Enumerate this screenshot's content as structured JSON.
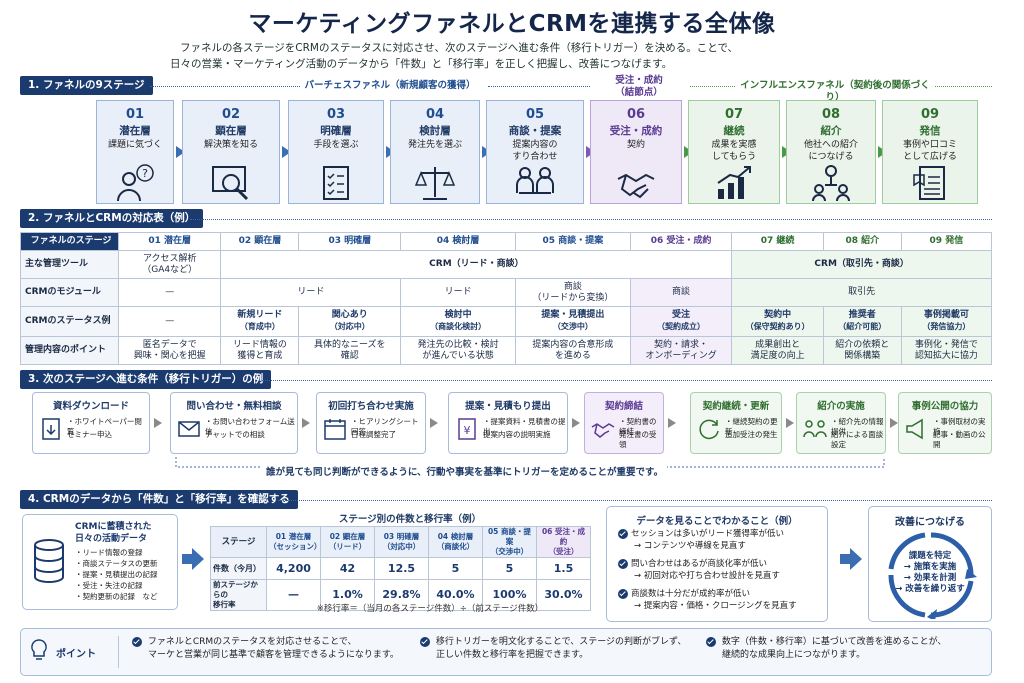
{
  "title": "マーケティングファネルとCRMを連携する全体像",
  "subtitle1": "ファネルの各ステージをCRMのステータスに対応させ、次のステージへ進む条件（移行トリガー）を決める。ことで、",
  "subtitle2": "日々の営業・マーケティング活動のデータから「件数」と「移行率」を正しく把握し、改善につなげます。",
  "sections": [
    "1. ファネルの9ステージ",
    "2. ファネルとCRMの対応表（例）",
    "3. 次のステージへ進む条件（移行トリガー）の例",
    "4. CRMのデータから「件数」と「移行率」を確認する"
  ],
  "groups": {
    "purchase": "パーチェスファネル（新規顧客の獲得）",
    "node1": "受注・成約",
    "node2": "（結節点）",
    "influence": "インフルエンスファネル（契約後の関係づくり）"
  },
  "stages": [
    {
      "num": "01",
      "name": "潜在層",
      "desc1": "課題に気づく",
      "desc2": "",
      "icon": "person-question-icon"
    },
    {
      "num": "02",
      "name": "顕在層",
      "desc1": "解決策を知る",
      "desc2": "",
      "icon": "magnifier-screen-icon"
    },
    {
      "num": "03",
      "name": "明確層",
      "desc1": "手段を選ぶ",
      "desc2": "",
      "icon": "checklist-icon"
    },
    {
      "num": "04",
      "name": "検討層",
      "desc1": "発注先を選ぶ",
      "desc2": "",
      "icon": "scale-icon"
    },
    {
      "num": "05",
      "name": "商談・提案",
      "desc1": "提案内容の",
      "desc2": "すり合わせ",
      "icon": "meeting-icon"
    },
    {
      "num": "06",
      "name": "受注・成約",
      "desc1": "契約",
      "desc2": "",
      "icon": "handshake-icon"
    },
    {
      "num": "07",
      "name": "継続",
      "desc1": "成果を実感",
      "desc2": "してもらう",
      "icon": "growth-chart-icon"
    },
    {
      "num": "08",
      "name": "紹介",
      "desc1": "他社への紹介",
      "desc2": "につなげる",
      "icon": "referral-icon"
    },
    {
      "num": "09",
      "name": "発信",
      "desc1": "事例や口コミ",
      "desc2": "として広げる",
      "icon": "document-icon"
    }
  ],
  "table": {
    "header": [
      "ファネルのステージ",
      "01 潜在層",
      "02 顕在層",
      "03 明確層",
      "04 検討層",
      "05 商談・提案",
      "06 受注・成約",
      "07 継続",
      "08 紹介",
      "09 発信"
    ],
    "tools_label": "主な管理ツール",
    "tools_01a": "アクセス解析",
    "tools_01b": "（GA4など）",
    "tools_crm1": "CRM（リード・商談）",
    "tools_crm2": "CRM（取引先・商談）",
    "module_label": "CRMのモジュール",
    "module_01": "—",
    "module_lead1": "リード",
    "module_lead2": "リード",
    "module_05a": "商談",
    "module_05b": "（リードから変換）",
    "module_06": "商談",
    "module_acc": "取引先",
    "status_label": "CRMのステータス例",
    "status_01": "—",
    "status": [
      [
        "新規リード",
        "（育成中）"
      ],
      [
        "関心あり",
        "（対応中）"
      ],
      [
        "検討中",
        "（商談化検討）"
      ],
      [
        "提案・見積提出",
        "（交渉中）"
      ],
      [
        "受注",
        "（契約成立）"
      ],
      [
        "契約中",
        "（保守契約あり）"
      ],
      [
        "推奨者",
        "（紹介可能）"
      ],
      [
        "事例掲載可",
        "（発信協力）"
      ]
    ],
    "point_label": "管理内容のポイント",
    "points": [
      [
        "匿名データで",
        "興味・関心を把握"
      ],
      [
        "リード情報の",
        "獲得と育成"
      ],
      [
        "具体的なニーズを",
        "確認"
      ],
      [
        "発注先の比較・検討",
        "が進んでいる状態"
      ],
      [
        "提案内容の合意形成",
        "を進める"
      ],
      [
        "契約・請求・",
        "オンボーディング"
      ],
      [
        "成果創出と",
        "満足度の向上"
      ],
      [
        "紹介の依頼と",
        "関係構築"
      ],
      [
        "事例化・発信で",
        "認知拡大に協力"
      ]
    ]
  },
  "triggers": [
    {
      "title": "資料ダウンロード",
      "items": [
        "ホワイトペーパー閲覧",
        "セミナー申込"
      ]
    },
    {
      "title": "問い合わせ・無料相談",
      "items": [
        "お問い合わせフォーム送信",
        "チャットでの相談"
      ]
    },
    {
      "title": "初回打ち合わせ実施",
      "items": [
        "ヒアリングシート回答",
        "日程調整完了"
      ]
    },
    {
      "title": "提案・見積もり提出",
      "items": [
        "提案資料・見積書の提出",
        "提案内容の説明実施"
      ]
    },
    {
      "title": "契約締結",
      "items": [
        "契約書の締結",
        "発注書の受領"
      ]
    },
    {
      "title": "契約継続・更新",
      "items": [
        "継続契約の更新",
        "追加受注の発生"
      ]
    },
    {
      "title": "紹介の実施",
      "items": [
        "紹介先の情報提供",
        "紹介による面談設定"
      ]
    },
    {
      "title": "事例公開の協力",
      "items": [
        "事例取材の実施",
        "記事・動画の公開"
      ]
    }
  ],
  "trigger_note": "誰が見ても同じ判断ができるように、行動や事実を基準にトリガーを定めることが重要です。",
  "crm_box": {
    "title1": "CRMに蓄積された",
    "title2": "日々の活動データ",
    "items": [
      "・リード情報の登録",
      "・商談ステータスの更新",
      "・提案・見積提出の記録",
      "・受注・失注の記録",
      "・契約更新の記録　など"
    ]
  },
  "stage_table": {
    "title": "ステージ別の件数と移行率（例）",
    "head": [
      [
        "ステージ",
        ""
      ],
      [
        "01 潜在層",
        "（セッション）"
      ],
      [
        "02 顕在層",
        "（リード）"
      ],
      [
        "03 明確層",
        "（対応中）"
      ],
      [
        "04 検討層",
        "（商談化）"
      ],
      [
        "05 商談・提案",
        "（交渉中）"
      ],
      [
        "06 受注・成約",
        "（受注）"
      ]
    ],
    "count_label": "件数（今月）",
    "counts": [
      "4,200",
      "42",
      "12.5",
      "5",
      "5",
      "1.5"
    ],
    "rate_label1": "前ステージからの",
    "rate_label2": "移行率",
    "rates": [
      "—",
      "1.0%",
      "29.8%",
      "40.0%",
      "100%",
      "30.0%"
    ],
    "footnote": "※移行率＝（当月の各ステージ件数）÷（前ステージ件数）"
  },
  "insights": {
    "title": "データを見ることでわかること（例）",
    "items": [
      [
        "セッションは多いがリード獲得率が低い",
        "→ コンテンツや導線を見直す"
      ],
      [
        "問い合わせはあるが商談化率が低い",
        "→ 初回対応や打ち合わせ設計を見直す"
      ],
      [
        "商談数は十分だが成約率が低い",
        "→ 提案内容・価格・クロージングを見直す"
      ]
    ]
  },
  "improve": {
    "title": "改善につなげる",
    "lines": [
      "課題を特定",
      "→ 施策を実施",
      "→ 効果を計測",
      "→ 改善を繰り返す"
    ]
  },
  "point": {
    "label": "ポイント",
    "items": [
      [
        "ファネルとCRMのステータスを対応させることで、",
        "マーケと営業が同じ基準で顧客を管理できるようになります。"
      ],
      [
        "移行トリガーを明文化することで、ステージの判断がブレず、",
        "正しい件数と移行率を把握できます。"
      ],
      [
        "数字（件数・移行率）に基づいて改善を進めることが、",
        "継続的な成果向上につながります。"
      ]
    ]
  },
  "colors": {
    "navy": "#1b3a6e",
    "purple": "#5b3a93",
    "green": "#2f6e2f"
  }
}
